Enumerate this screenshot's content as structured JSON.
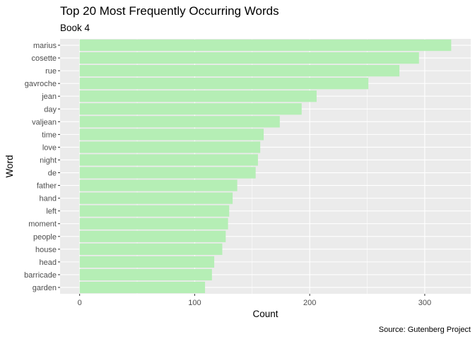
{
  "chart_data": {
    "type": "bar",
    "orientation": "horizontal",
    "title": "Top 20 Most Frequently Occurring Words",
    "subtitle": "Book 4",
    "xlabel": "Count",
    "ylabel": "Word",
    "caption": "Source: Gutenberg Project",
    "bar_color": "#b5eeb5",
    "panel_color": "#ebebeb",
    "grid": true,
    "legend": "none",
    "xlim": [
      -17,
      340
    ],
    "xticks": [
      0,
      100,
      200,
      300
    ],
    "categories": [
      "marius",
      "cosette",
      "rue",
      "gavroche",
      "jean",
      "day",
      "valjean",
      "time",
      "love",
      "night",
      "de",
      "father",
      "hand",
      "left",
      "moment",
      "people",
      "house",
      "head",
      "barricade",
      "garden"
    ],
    "values": [
      323,
      295,
      278,
      251,
      206,
      193,
      174,
      160,
      157,
      155,
      153,
      137,
      133,
      130,
      129,
      127,
      124,
      117,
      115,
      109
    ]
  }
}
